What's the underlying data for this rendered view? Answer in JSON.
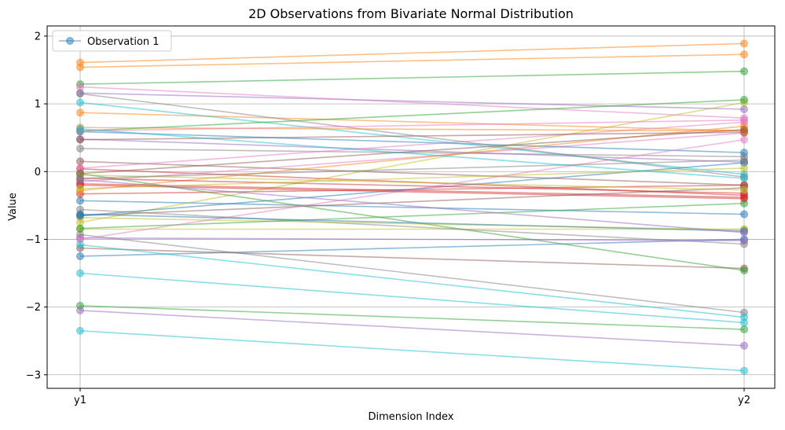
{
  "chart_data": {
    "type": "line",
    "title": "2D Observations from Bivariate Normal Distribution",
    "xlabel": "Dimension Index",
    "ylabel": "Value",
    "categories": [
      "y1",
      "y2"
    ],
    "ylim": [
      -3.2,
      2.15
    ],
    "yticks": [
      -3,
      -2,
      -1,
      0,
      1,
      2
    ],
    "ytick_labels": [
      "−3",
      "−2",
      "−1",
      "0",
      "1",
      "2"
    ],
    "grid": true,
    "legend": {
      "placement": "top-left",
      "entries": [
        "Observation 1"
      ]
    },
    "palette": [
      "#1f77b4",
      "#ff7f0e",
      "#2ca02c",
      "#d62728",
      "#9467bd",
      "#8c564b",
      "#e377c2",
      "#7f7f7f",
      "#bcbd22",
      "#17becf"
    ],
    "series": [
      {
        "name": "Observation 1",
        "color": "#1f77b4",
        "values": [
          -0.43,
          -0.63
        ]
      },
      {
        "color": "#ff7f0e",
        "values": [
          1.61,
          1.89
        ]
      },
      {
        "color": "#2ca02c",
        "values": [
          1.29,
          1.48
        ]
      },
      {
        "color": "#d62728",
        "values": [
          0.04,
          -0.35
        ]
      },
      {
        "color": "#9467bd",
        "values": [
          1.16,
          0.92
        ]
      },
      {
        "color": "#8c564b",
        "values": [
          0.15,
          -0.2
        ]
      },
      {
        "color": "#e377c2",
        "values": [
          1.25,
          0.79
        ]
      },
      {
        "color": "#7f7f7f",
        "values": [
          0.34,
          0.22
        ]
      },
      {
        "color": "#bcbd22",
        "values": [
          -0.85,
          -0.85
        ]
      },
      {
        "color": "#17becf",
        "values": [
          -2.35,
          -2.94
        ]
      },
      {
        "color": "#1f77b4",
        "values": [
          -1.25,
          -1.0
        ]
      },
      {
        "color": "#ff7f0e",
        "values": [
          1.54,
          1.73
        ]
      },
      {
        "color": "#2ca02c",
        "values": [
          -1.98,
          -2.33
        ]
      },
      {
        "color": "#d62728",
        "values": [
          -0.33,
          -0.2
        ]
      },
      {
        "color": "#9467bd",
        "values": [
          -2.05,
          -2.57
        ]
      },
      {
        "color": "#8c564b",
        "values": [
          -1.13,
          -1.43
        ]
      },
      {
        "color": "#e377c2",
        "values": [
          -0.15,
          0.57
        ]
      },
      {
        "color": "#7f7f7f",
        "values": [
          -0.93,
          -2.08
        ]
      },
      {
        "color": "#bcbd22",
        "values": [
          -0.75,
          1.02
        ]
      },
      {
        "color": "#17becf",
        "values": [
          -1.5,
          -2.23
        ]
      },
      {
        "color": "#1f77b4",
        "values": [
          0.59,
          0.28
        ]
      },
      {
        "color": "#ff7f0e",
        "values": [
          0.87,
          0.6
        ]
      },
      {
        "color": "#2ca02c",
        "values": [
          -0.03,
          -1.46
        ]
      },
      {
        "color": "#d62728",
        "values": [
          -0.18,
          -0.38
        ]
      },
      {
        "color": "#9467bd",
        "values": [
          0.48,
          0.14
        ]
      },
      {
        "color": "#8c564b",
        "values": [
          -0.65,
          -0.24
        ]
      },
      {
        "color": "#e377c2",
        "values": [
          0.05,
          0.73
        ]
      },
      {
        "color": "#7f7f7f",
        "values": [
          -0.56,
          -1.07
        ]
      },
      {
        "color": "#bcbd22",
        "values": [
          -0.68,
          -0.86
        ]
      },
      {
        "color": "#17becf",
        "values": [
          1.02,
          -0.04
        ]
      },
      {
        "color": "#1f77b4",
        "values": [
          -0.65,
          0.13
        ]
      },
      {
        "color": "#ff7f0e",
        "values": [
          -0.28,
          0.67
        ]
      },
      {
        "color": "#2ca02c",
        "values": [
          -0.84,
          -0.47
        ]
      },
      {
        "color": "#d62728",
        "values": [
          -0.1,
          -0.32
        ]
      },
      {
        "color": "#9467bd",
        "values": [
          -0.98,
          -1.02
        ]
      },
      {
        "color": "#8c564b",
        "values": [
          0.47,
          0.58
        ]
      },
      {
        "color": "#e377c2",
        "values": [
          -1.0,
          0.47
        ]
      },
      {
        "color": "#7f7f7f",
        "values": [
          1.15,
          -0.08
        ]
      },
      {
        "color": "#bcbd22",
        "values": [
          -0.05,
          -0.27
        ]
      },
      {
        "color": "#17becf",
        "values": [
          -1.08,
          -2.15
        ]
      },
      {
        "color": "#1f77b4",
        "values": [
          -0.63,
          -0.88
        ]
      },
      {
        "color": "#ff7f0e",
        "values": [
          0.65,
          0.6
        ]
      },
      {
        "color": "#2ca02c",
        "values": [
          0.6,
          1.06
        ]
      },
      {
        "color": "#d62728",
        "values": [
          -0.2,
          -0.4
        ]
      },
      {
        "color": "#9467bd",
        "values": [
          -0.12,
          -0.9
        ]
      },
      {
        "color": "#8c564b",
        "values": [
          -0.03,
          0.62
        ]
      },
      {
        "color": "#e377c2",
        "values": [
          0.6,
          0.76
        ]
      },
      {
        "color": "#7f7f7f",
        "values": [
          -0.1,
          0.17
        ]
      },
      {
        "color": "#bcbd22",
        "values": [
          -0.25,
          0.05
        ]
      },
      {
        "color": "#17becf",
        "values": [
          0.63,
          -0.1
        ]
      }
    ]
  }
}
